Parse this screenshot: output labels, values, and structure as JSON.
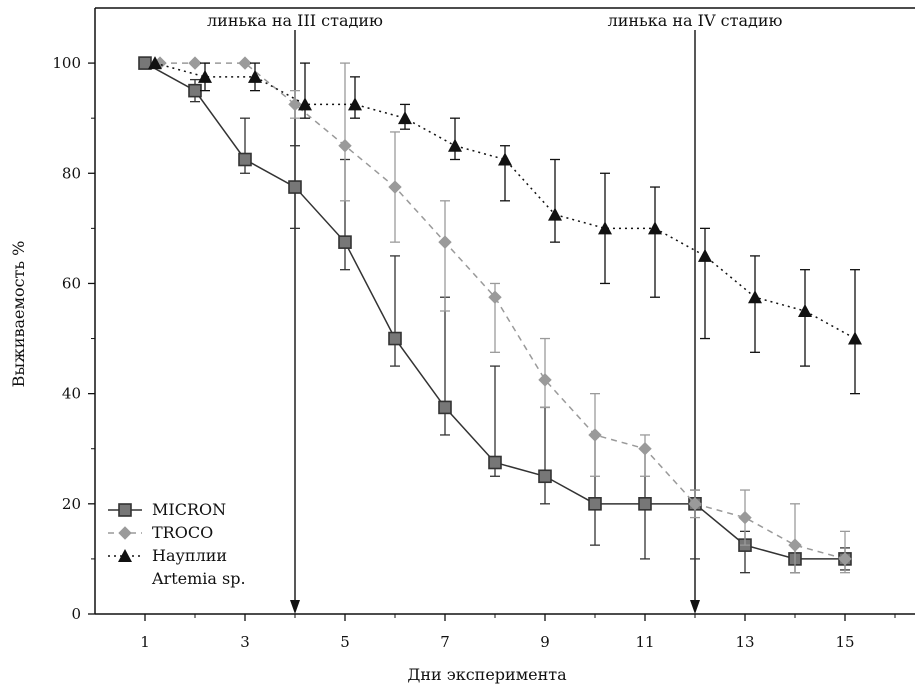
{
  "chart_data": {
    "type": "line",
    "title": "",
    "xlabel": "Дни эксперимента",
    "ylabel": "Выживаемость %",
    "xlim": [
      0,
      16.4
    ],
    "ylim": [
      0,
      110
    ],
    "x_ticks": [
      1,
      3,
      5,
      7,
      9,
      11,
      13,
      15
    ],
    "y_ticks": [
      0,
      20,
      40,
      60,
      80,
      100
    ],
    "grid": false,
    "legend_position": "bottom-left",
    "annotations": [
      {
        "text": "линька на III стадию",
        "x": 4
      },
      {
        "text": "линька на IV стадию",
        "x": 12
      }
    ],
    "series": [
      {
        "name": "MICRON",
        "marker": "square",
        "line_style": "solid",
        "color": "#333333",
        "x": [
          1,
          2,
          3,
          4,
          5,
          6,
          7,
          8,
          9,
          10,
          11,
          12,
          13,
          14,
          15
        ],
        "y": [
          100,
          95,
          82.5,
          77.5,
          67.5,
          50,
          37.5,
          27.5,
          25,
          20,
          20,
          20,
          12.5,
          10,
          10
        ],
        "err_low": [
          0,
          2,
          2.5,
          7.5,
          5,
          5,
          5,
          2.5,
          5,
          7.5,
          10,
          10,
          5,
          2.5,
          2
        ],
        "err_high": [
          0,
          2,
          7.5,
          7.5,
          15,
          15,
          20,
          17.5,
          12.5,
          12.5,
          10,
          2.5,
          2.5,
          2.5,
          2
        ]
      },
      {
        "name": "TROCO",
        "marker": "diamond",
        "line_style": "dashed",
        "color": "#9a9a9a",
        "x": [
          1.3,
          2,
          3,
          4,
          5,
          6,
          7,
          8,
          9,
          10,
          11,
          12,
          13,
          14,
          15
        ],
        "y": [
          100,
          100,
          100,
          92.5,
          85,
          77.5,
          67.5,
          57.5,
          42.5,
          32.5,
          30,
          20,
          17.5,
          12.5,
          10
        ],
        "err_low": [
          0,
          0,
          0,
          2.5,
          10,
          10,
          12.5,
          10,
          5,
          7.5,
          5,
          2.5,
          5,
          5,
          2.5
        ],
        "err_high": [
          0,
          0,
          0,
          2.5,
          15,
          10,
          7.5,
          2.5,
          7.5,
          7.5,
          2.5,
          2.5,
          5,
          7.5,
          5
        ]
      },
      {
        "name": "Науплии Artemia sp.",
        "legend_lines": [
          "Науплии",
          "Artemia sp."
        ],
        "marker": "triangle",
        "line_style": "dotted",
        "color": "#111111",
        "x": [
          1.2,
          2.2,
          3.2,
          4.2,
          5.2,
          6.2,
          7.2,
          8.2,
          9.2,
          10.2,
          11.2,
          12.2,
          13.2,
          14.2,
          15.2
        ],
        "y": [
          100,
          97.5,
          97.5,
          92.5,
          92.5,
          90,
          85,
          82.5,
          72.5,
          70,
          70,
          65,
          57.5,
          55,
          50
        ],
        "err_low": [
          0,
          2.5,
          2.5,
          2.5,
          2.5,
          2,
          2.5,
          7.5,
          5,
          10,
          12.5,
          15,
          10,
          10,
          10
        ],
        "err_high": [
          0,
          2.5,
          2.5,
          7.5,
          5,
          2.5,
          5,
          2.5,
          10,
          10,
          7.5,
          5,
          7.5,
          7.5,
          12.5
        ]
      }
    ]
  }
}
